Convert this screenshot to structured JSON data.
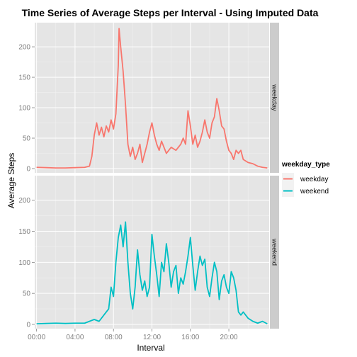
{
  "chart_data": {
    "type": "line",
    "title": "Time Series of Average Steps per Interval - Using Imputed Data",
    "xlabel": "Interval",
    "ylabel": "Average Steps",
    "x_tick_labels": [
      "00:00",
      "04:00",
      "08:00",
      "12:00",
      "16:00",
      "20:00"
    ],
    "x_ticks_hours": [
      0,
      4,
      8,
      12,
      16,
      20
    ],
    "xlim_hours": [
      0,
      24
    ],
    "y_ticks": [
      0,
      50,
      100,
      150,
      200
    ],
    "ylim": [
      0,
      235
    ],
    "grid": true,
    "legend": {
      "title": "weekday_type",
      "entries": [
        "weekday",
        "weekend"
      ],
      "placement": "right"
    },
    "panels": [
      {
        "strip_label": "weekday",
        "series_name": "weekday",
        "color": "#F8766D",
        "points": [
          [
            0,
            2
          ],
          [
            1,
            1.5
          ],
          [
            2,
            1
          ],
          [
            3,
            1
          ],
          [
            4,
            1.5
          ],
          [
            5,
            2
          ],
          [
            5.5,
            4
          ],
          [
            5.75,
            20
          ],
          [
            6,
            55
          ],
          [
            6.25,
            75
          ],
          [
            6.5,
            55
          ],
          [
            6.75,
            68
          ],
          [
            7,
            52
          ],
          [
            7.25,
            70
          ],
          [
            7.5,
            60
          ],
          [
            7.75,
            80
          ],
          [
            8,
            65
          ],
          [
            8.25,
            90
          ],
          [
            8.5,
            170
          ],
          [
            8.58,
            230
          ],
          [
            8.75,
            200
          ],
          [
            9,
            160
          ],
          [
            9.25,
            105
          ],
          [
            9.5,
            40
          ],
          [
            9.75,
            20
          ],
          [
            10,
            35
          ],
          [
            10.25,
            15
          ],
          [
            10.5,
            25
          ],
          [
            10.75,
            40
          ],
          [
            11,
            10
          ],
          [
            11.25,
            25
          ],
          [
            11.5,
            40
          ],
          [
            11.75,
            60
          ],
          [
            12,
            75
          ],
          [
            12.25,
            55
          ],
          [
            12.5,
            40
          ],
          [
            12.75,
            30
          ],
          [
            13,
            45
          ],
          [
            13.5,
            25
          ],
          [
            14,
            35
          ],
          [
            14.5,
            30
          ],
          [
            15,
            40
          ],
          [
            15.25,
            50
          ],
          [
            15.5,
            40
          ],
          [
            15.75,
            95
          ],
          [
            16,
            70
          ],
          [
            16.25,
            40
          ],
          [
            16.5,
            55
          ],
          [
            16.75,
            35
          ],
          [
            17,
            45
          ],
          [
            17.25,
            60
          ],
          [
            17.5,
            80
          ],
          [
            17.75,
            60
          ],
          [
            18,
            50
          ],
          [
            18.25,
            75
          ],
          [
            18.5,
            85
          ],
          [
            18.75,
            115
          ],
          [
            19,
            95
          ],
          [
            19.25,
            70
          ],
          [
            19.5,
            65
          ],
          [
            19.75,
            45
          ],
          [
            20,
            30
          ],
          [
            20.25,
            25
          ],
          [
            20.5,
            15
          ],
          [
            20.75,
            30
          ],
          [
            21,
            25
          ],
          [
            21.25,
            30
          ],
          [
            21.5,
            15
          ],
          [
            22,
            10
          ],
          [
            22.5,
            8
          ],
          [
            23,
            4
          ],
          [
            23.5,
            2
          ],
          [
            24,
            1
          ]
        ]
      },
      {
        "strip_label": "weekend",
        "series_name": "weekend",
        "color": "#00BFC4",
        "points": [
          [
            0,
            1
          ],
          [
            1,
            1.5
          ],
          [
            2,
            2
          ],
          [
            3,
            1.5
          ],
          [
            4,
            2
          ],
          [
            5,
            2
          ],
          [
            5.5,
            5
          ],
          [
            6,
            8
          ],
          [
            6.5,
            5
          ],
          [
            7,
            15
          ],
          [
            7.5,
            25
          ],
          [
            7.75,
            60
          ],
          [
            8,
            45
          ],
          [
            8.25,
            100
          ],
          [
            8.5,
            140
          ],
          [
            8.75,
            160
          ],
          [
            9,
            125
          ],
          [
            9.25,
            165
          ],
          [
            9.5,
            100
          ],
          [
            9.75,
            50
          ],
          [
            10,
            25
          ],
          [
            10.25,
            60
          ],
          [
            10.5,
            120
          ],
          [
            10.75,
            80
          ],
          [
            11,
            55
          ],
          [
            11.25,
            70
          ],
          [
            11.5,
            45
          ],
          [
            11.75,
            60
          ],
          [
            12,
            145
          ],
          [
            12.25,
            110
          ],
          [
            12.5,
            80
          ],
          [
            12.75,
            45
          ],
          [
            13,
            100
          ],
          [
            13.25,
            85
          ],
          [
            13.5,
            130
          ],
          [
            13.75,
            100
          ],
          [
            14,
            60
          ],
          [
            14.25,
            85
          ],
          [
            14.5,
            95
          ],
          [
            14.75,
            50
          ],
          [
            15,
            75
          ],
          [
            15.25,
            65
          ],
          [
            15.5,
            85
          ],
          [
            15.75,
            110
          ],
          [
            16,
            140
          ],
          [
            16.25,
            95
          ],
          [
            16.5,
            55
          ],
          [
            16.75,
            85
          ],
          [
            17,
            110
          ],
          [
            17.25,
            95
          ],
          [
            17.5,
            105
          ],
          [
            17.75,
            60
          ],
          [
            18,
            45
          ],
          [
            18.25,
            75
          ],
          [
            18.5,
            100
          ],
          [
            18.75,
            85
          ],
          [
            19,
            40
          ],
          [
            19.25,
            70
          ],
          [
            19.5,
            80
          ],
          [
            19.75,
            60
          ],
          [
            20,
            50
          ],
          [
            20.25,
            85
          ],
          [
            20.5,
            75
          ],
          [
            20.75,
            55
          ],
          [
            21,
            20
          ],
          [
            21.25,
            15
          ],
          [
            21.5,
            20
          ],
          [
            22,
            10
          ],
          [
            22.5,
            5
          ],
          [
            23,
            2
          ],
          [
            23.5,
            5
          ],
          [
            24,
            1
          ]
        ]
      }
    ]
  }
}
